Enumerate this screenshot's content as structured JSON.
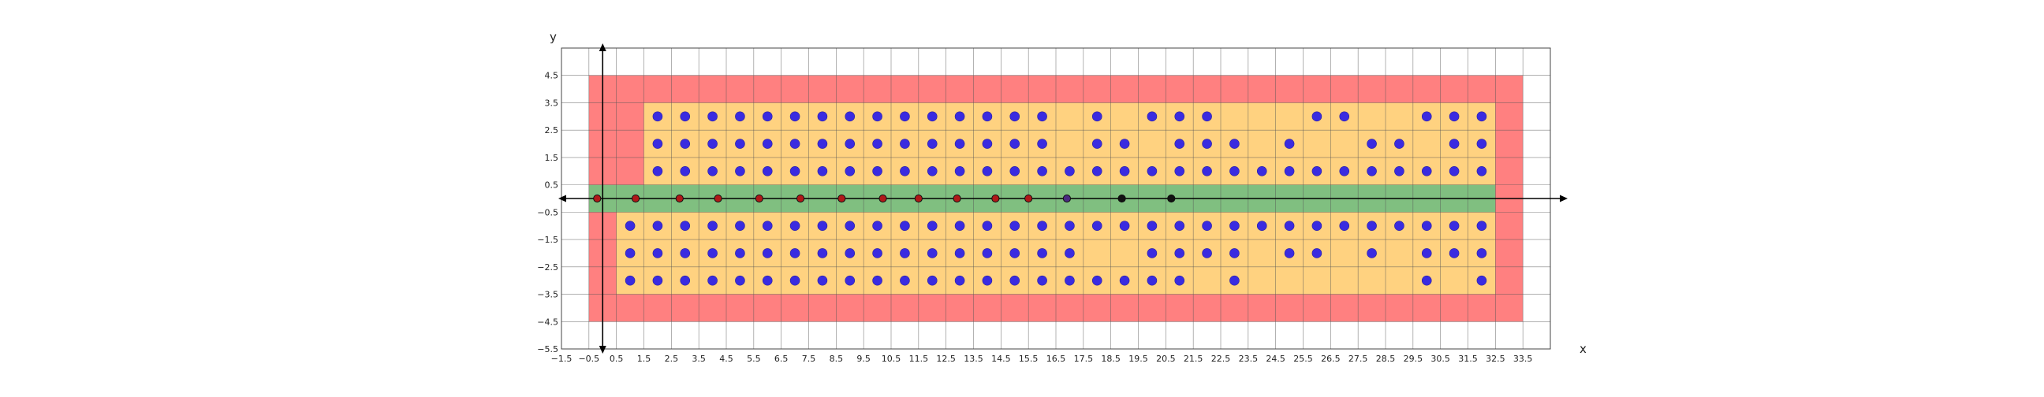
{
  "chart_data": {
    "type": "scatter",
    "title": "",
    "xlabel": "x",
    "ylabel": "y",
    "xlim": [
      -1.5,
      34.5
    ],
    "ylim": [
      -5.5,
      5.5
    ],
    "grid": true,
    "x_ticks": [
      -1.5,
      -0.5,
      0.5,
      1.5,
      2.5,
      3.5,
      4.5,
      5.5,
      6.5,
      7.5,
      8.5,
      9.5,
      10.5,
      11.5,
      12.5,
      13.5,
      14.5,
      15.5,
      16.5,
      17.5,
      18.5,
      19.5,
      20.5,
      21.5,
      22.5,
      23.5,
      24.5,
      25.5,
      26.5,
      27.5,
      28.5,
      29.5,
      30.5,
      31.5,
      32.5,
      33.5
    ],
    "y_ticks": [
      4.5,
      3.5,
      2.5,
      1.5,
      0.5,
      -0.5,
      -1.5,
      -2.5,
      -3.5,
      -4.5,
      -5.5
    ],
    "regions": [
      {
        "name": "outer-zone",
        "color": "#ff8080",
        "x0": -0.5,
        "x1": 33.5,
        "y0": -4.5,
        "y1": 4.5
      },
      {
        "name": "inner-zone-top",
        "color": "#ffd280",
        "x0": 1.5,
        "x1": 32.5,
        "y0": 0.5,
        "y1": 3.5
      },
      {
        "name": "inner-zone-bottom",
        "color": "#ffd280",
        "x0": 0.5,
        "x1": 32.5,
        "y0": -3.5,
        "y1": -0.5
      },
      {
        "name": "axis-band",
        "color": "#80bf80",
        "x0": -0.5,
        "x1": 32.5,
        "y0": -0.5,
        "y1": 0.5
      }
    ],
    "series": [
      {
        "color": "#3a2be0",
        "points": [
          [
            2,
            3
          ],
          [
            3,
            3
          ],
          [
            4,
            3
          ],
          [
            5,
            3
          ],
          [
            6,
            3
          ],
          [
            7,
            3
          ],
          [
            8,
            3
          ],
          [
            9,
            3
          ],
          [
            10,
            3
          ],
          [
            11,
            3
          ],
          [
            12,
            3
          ],
          [
            13,
            3
          ],
          [
            14,
            3
          ],
          [
            15,
            3
          ],
          [
            16,
            3
          ],
          [
            18,
            3
          ],
          [
            20,
            3
          ],
          [
            21,
            3
          ],
          [
            22,
            3
          ],
          [
            26,
            3
          ],
          [
            27,
            3
          ],
          [
            30,
            3
          ],
          [
            31,
            3
          ],
          [
            32,
            3
          ],
          [
            2,
            2
          ],
          [
            3,
            2
          ],
          [
            4,
            2
          ],
          [
            5,
            2
          ],
          [
            6,
            2
          ],
          [
            7,
            2
          ],
          [
            8,
            2
          ],
          [
            9,
            2
          ],
          [
            10,
            2
          ],
          [
            11,
            2
          ],
          [
            12,
            2
          ],
          [
            13,
            2
          ],
          [
            14,
            2
          ],
          [
            15,
            2
          ],
          [
            16,
            2
          ],
          [
            18,
            2
          ],
          [
            19,
            2
          ],
          [
            21,
            2
          ],
          [
            22,
            2
          ],
          [
            23,
            2
          ],
          [
            25,
            2
          ],
          [
            28,
            2
          ],
          [
            29,
            2
          ],
          [
            31,
            2
          ],
          [
            32,
            2
          ],
          [
            2,
            1
          ],
          [
            3,
            1
          ],
          [
            4,
            1
          ],
          [
            5,
            1
          ],
          [
            6,
            1
          ],
          [
            7,
            1
          ],
          [
            8,
            1
          ],
          [
            9,
            1
          ],
          [
            10,
            1
          ],
          [
            11,
            1
          ],
          [
            12,
            1
          ],
          [
            13,
            1
          ],
          [
            14,
            1
          ],
          [
            15,
            1
          ],
          [
            16,
            1
          ],
          [
            17,
            1
          ],
          [
            18,
            1
          ],
          [
            19,
            1
          ],
          [
            20,
            1
          ],
          [
            21,
            1
          ],
          [
            22,
            1
          ],
          [
            23,
            1
          ],
          [
            24,
            1
          ],
          [
            25,
            1
          ],
          [
            26,
            1
          ],
          [
            27,
            1
          ],
          [
            28,
            1
          ],
          [
            29,
            1
          ],
          [
            30,
            1
          ],
          [
            31,
            1
          ],
          [
            32,
            1
          ],
          [
            1,
            -1
          ],
          [
            2,
            -1
          ],
          [
            3,
            -1
          ],
          [
            4,
            -1
          ],
          [
            5,
            -1
          ],
          [
            6,
            -1
          ],
          [
            7,
            -1
          ],
          [
            8,
            -1
          ],
          [
            9,
            -1
          ],
          [
            10,
            -1
          ],
          [
            11,
            -1
          ],
          [
            12,
            -1
          ],
          [
            13,
            -1
          ],
          [
            14,
            -1
          ],
          [
            15,
            -1
          ],
          [
            16,
            -1
          ],
          [
            17,
            -1
          ],
          [
            18,
            -1
          ],
          [
            19,
            -1
          ],
          [
            20,
            -1
          ],
          [
            21,
            -1
          ],
          [
            22,
            -1
          ],
          [
            23,
            -1
          ],
          [
            24,
            -1
          ],
          [
            25,
            -1
          ],
          [
            26,
            -1
          ],
          [
            27,
            -1
          ],
          [
            28,
            -1
          ],
          [
            29,
            -1
          ],
          [
            30,
            -1
          ],
          [
            31,
            -1
          ],
          [
            32,
            -1
          ],
          [
            1,
            -2
          ],
          [
            2,
            -2
          ],
          [
            3,
            -2
          ],
          [
            4,
            -2
          ],
          [
            5,
            -2
          ],
          [
            6,
            -2
          ],
          [
            7,
            -2
          ],
          [
            8,
            -2
          ],
          [
            9,
            -2
          ],
          [
            10,
            -2
          ],
          [
            11,
            -2
          ],
          [
            12,
            -2
          ],
          [
            13,
            -2
          ],
          [
            14,
            -2
          ],
          [
            15,
            -2
          ],
          [
            16,
            -2
          ],
          [
            17,
            -2
          ],
          [
            20,
            -2
          ],
          [
            21,
            -2
          ],
          [
            22,
            -2
          ],
          [
            23,
            -2
          ],
          [
            25,
            -2
          ],
          [
            26,
            -2
          ],
          [
            28,
            -2
          ],
          [
            30,
            -2
          ],
          [
            31,
            -2
          ],
          [
            32,
            -2
          ],
          [
            1,
            -3
          ],
          [
            2,
            -3
          ],
          [
            3,
            -3
          ],
          [
            4,
            -3
          ],
          [
            5,
            -3
          ],
          [
            6,
            -3
          ],
          [
            7,
            -3
          ],
          [
            8,
            -3
          ],
          [
            9,
            -3
          ],
          [
            10,
            -3
          ],
          [
            11,
            -3
          ],
          [
            12,
            -3
          ],
          [
            13,
            -3
          ],
          [
            14,
            -3
          ],
          [
            15,
            -3
          ],
          [
            16,
            -3
          ],
          [
            17,
            -3
          ],
          [
            18,
            -3
          ],
          [
            19,
            -3
          ],
          [
            20,
            -3
          ],
          [
            21,
            -3
          ],
          [
            23,
            -3
          ],
          [
            30,
            -3
          ],
          [
            32,
            -3
          ]
        ]
      },
      {
        "color": "#b01818",
        "points": [
          [
            -0.2,
            0
          ],
          [
            1.2,
            0
          ],
          [
            2.8,
            0
          ],
          [
            4.2,
            0
          ],
          [
            5.7,
            0
          ],
          [
            7.2,
            0
          ],
          [
            8.7,
            0
          ],
          [
            10.2,
            0
          ],
          [
            11.5,
            0
          ],
          [
            12.9,
            0
          ],
          [
            14.3,
            0
          ],
          [
            15.5,
            0
          ]
        ]
      },
      {
        "color": "#4a2a80",
        "points": [
          [
            16.9,
            0
          ]
        ]
      },
      {
        "color": "#111111",
        "points": [
          [
            18.9,
            0
          ],
          [
            20.7,
            0
          ]
        ]
      }
    ]
  }
}
